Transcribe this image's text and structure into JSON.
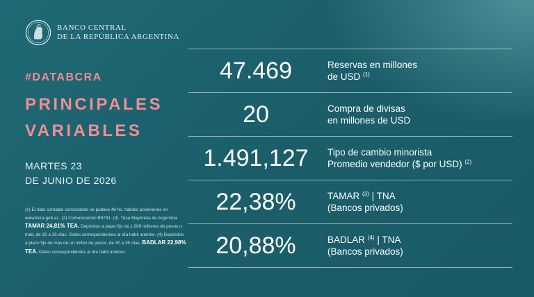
{
  "header": {
    "bank_line1": "BANCO CENTRAL",
    "bank_line2": "DE LA REPÚBLICA ARGENTINA"
  },
  "hashtag": "#DATABCRA",
  "title_line1": "PRINCIPALES",
  "title_line2": "VARIABLES",
  "date_line1": "MARTES 23",
  "date_line2": "DE JUNIO DE 2026",
  "footnote": {
    "part1": "(1) El dato contable consolidado se publica 48 hs. hábiles posteriores en www.bcra.gob.ar.. (2) Comunicación B9791. (3). Tasa Mayorista de Argentina.",
    "tamar_bold": "TAMAR 24,81% TEA.",
    "part2": "Depósitos a plazo fijo de 1.000 millones de pesos o más, de 30 a 35 días. Datos correspondientes al día hábil anterior. (4) Depósitos a plazo fijo de más de un millón de pesos, de 30 a 35 días.",
    "badlar_bold": "BADLAR 22,98% TEA.",
    "part3": "Datos correspondientes al día hábil anterior."
  },
  "variables": [
    {
      "value": "47.469",
      "label_line1": "Reservas en millones",
      "label_line2": "de USD",
      "note2": "(1)"
    },
    {
      "value": "20",
      "label_line1": "Compra de divisas",
      "label_line2": "en millones de USD"
    },
    {
      "value": "1.491,127",
      "label_line1": "Tipo de cambio minorista",
      "label_line2": "Promedio vendedor ($ por USD)",
      "note2": "(2)"
    },
    {
      "value": "22,38%",
      "label_line1": "TAMAR",
      "note1": "(3)",
      "label_line1_rest": "| TNA",
      "label_line2": "(Bancos privados)"
    },
    {
      "value": "20,88%",
      "label_line1": "BADLAR",
      "note1": "(4)",
      "label_line1_rest": "| TNA",
      "label_line2": "(Bancos privados)"
    }
  ],
  "colors": {
    "background": "#1b5f6b",
    "accent_pink": "#f08e95",
    "text": "#ffffff"
  },
  "icons": {
    "logo": "bcra-seal-icon"
  }
}
